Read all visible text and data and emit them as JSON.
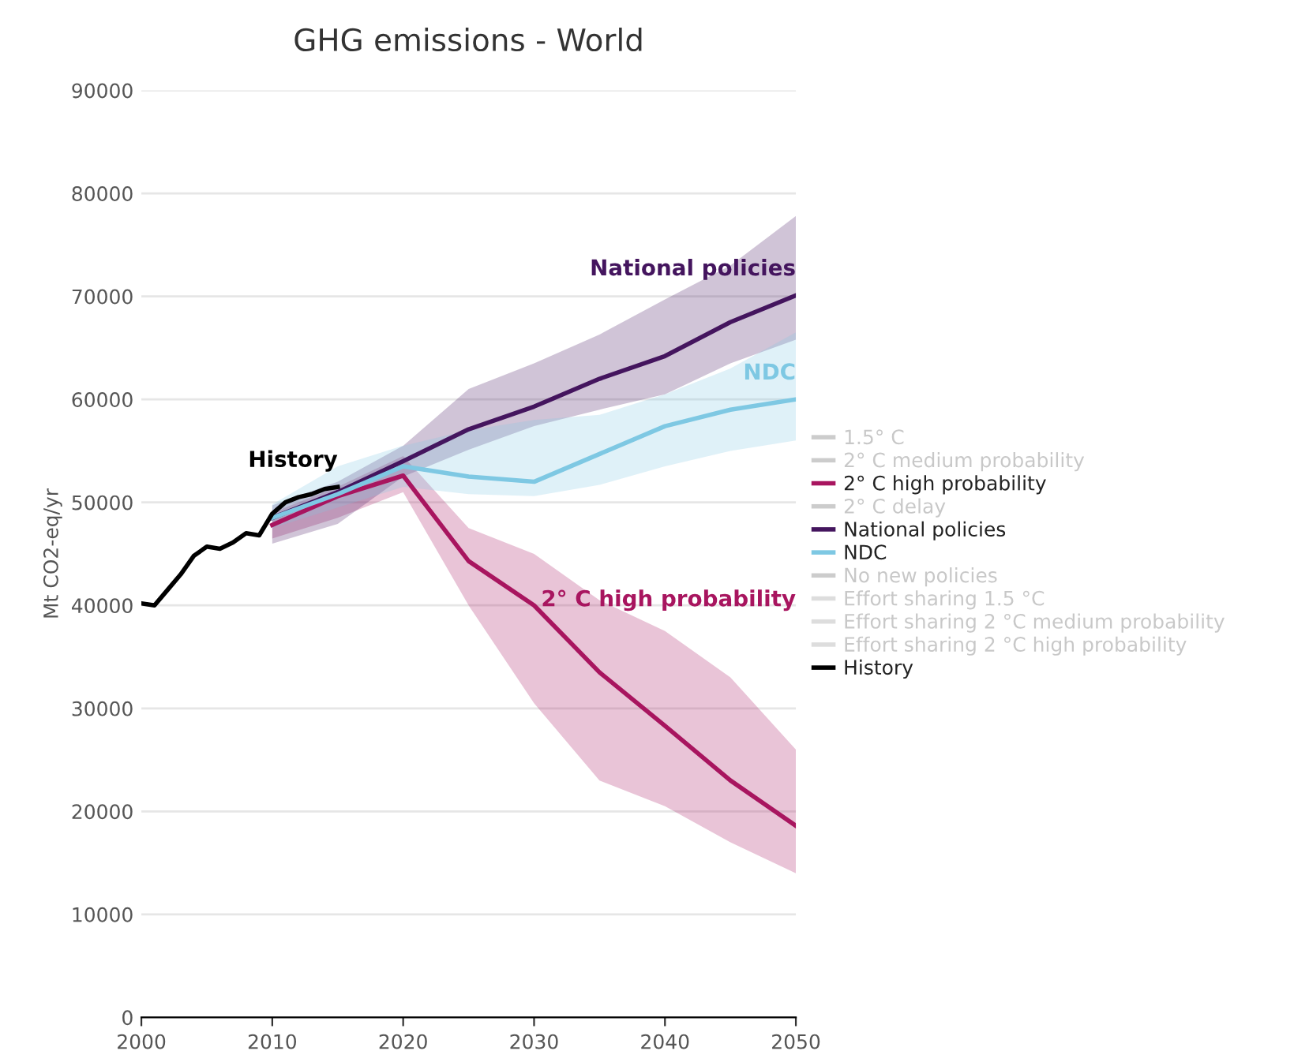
{
  "chart_data": {
    "type": "line",
    "title": "GHG emissions - World",
    "ylabel": "Mt CO2-eq/yr",
    "xlim": [
      2000,
      2050
    ],
    "xticks": [
      2000,
      2010,
      2020,
      2030,
      2040,
      2050
    ],
    "ylim": [
      0,
      90000
    ],
    "yticks": [
      0,
      10000,
      20000,
      30000,
      40000,
      50000,
      60000,
      70000,
      80000,
      90000
    ],
    "grid": "y",
    "legend": "right",
    "marker": "none",
    "line_style": "solid",
    "series": [
      {
        "name": "1.5° C",
        "color": "#cccccc"
      },
      {
        "name": "2° C medium probability",
        "color": "#cccccc"
      },
      {
        "name": "2° C high probability",
        "color": "#a8155f",
        "x": [
          2010,
          2015,
          2020,
          2025,
          2030,
          2035,
          2040,
          2045,
          2050
        ],
        "values": [
          47800,
          50600,
          52600,
          44300,
          40000,
          33500,
          28300,
          23000,
          18600
        ],
        "lower": [
          46500,
          48500,
          51000,
          40000,
          30500,
          23000,
          20500,
          17000,
          14000
        ],
        "upper": [
          49000,
          51500,
          54500,
          47500,
          45000,
          40500,
          37500,
          33000,
          26000
        ]
      },
      {
        "name": "2° C delay",
        "color": "#cccccc"
      },
      {
        "name": "National policies",
        "color": "#44155e",
        "x": [
          2010,
          2015,
          2020,
          2025,
          2030,
          2035,
          2040,
          2045,
          2050
        ],
        "values": [
          48500,
          51000,
          54000,
          57100,
          59300,
          62000,
          64200,
          67500,
          70100
        ],
        "lower": [
          46000,
          47900,
          52500,
          55100,
          57400,
          59000,
          60500,
          63500,
          65800
        ],
        "upper": [
          49700,
          52000,
          55500,
          61000,
          63500,
          66300,
          69700,
          73000,
          77800
        ]
      },
      {
        "name": "NDC",
        "color": "#7ec8e3",
        "x": [
          2010,
          2015,
          2020,
          2025,
          2030,
          2035,
          2040,
          2045,
          2050
        ],
        "values": [
          48500,
          50800,
          53500,
          52500,
          52000,
          54700,
          57400,
          59000,
          60000
        ],
        "lower": [
          47500,
          49500,
          51500,
          50800,
          50600,
          51700,
          53500,
          55000,
          56000
        ],
        "upper": [
          49800,
          53500,
          55500,
          57000,
          58000,
          58500,
          60500,
          63000,
          66500
        ]
      },
      {
        "name": "No new policies",
        "color": "#cccccc"
      },
      {
        "name": "Effort sharing 1.5 °C",
        "color": "#dddddd"
      },
      {
        "name": "Effort sharing 2 °C medium probability",
        "color": "#dddddd"
      },
      {
        "name": "Effort sharing 2 °C high probability",
        "color": "#dddddd"
      },
      {
        "name": "History",
        "color": "#000000",
        "x": [
          2000,
          2001,
          2002,
          2003,
          2004,
          2005,
          2006,
          2007,
          2008,
          2009,
          2010,
          2011,
          2012,
          2013,
          2014,
          2015
        ],
        "values": [
          40200,
          40000,
          41500,
          43000,
          44800,
          45700,
          45500,
          46100,
          47000,
          46800,
          48900,
          50000,
          50500,
          50800,
          51300,
          51500
        ]
      }
    ]
  }
}
